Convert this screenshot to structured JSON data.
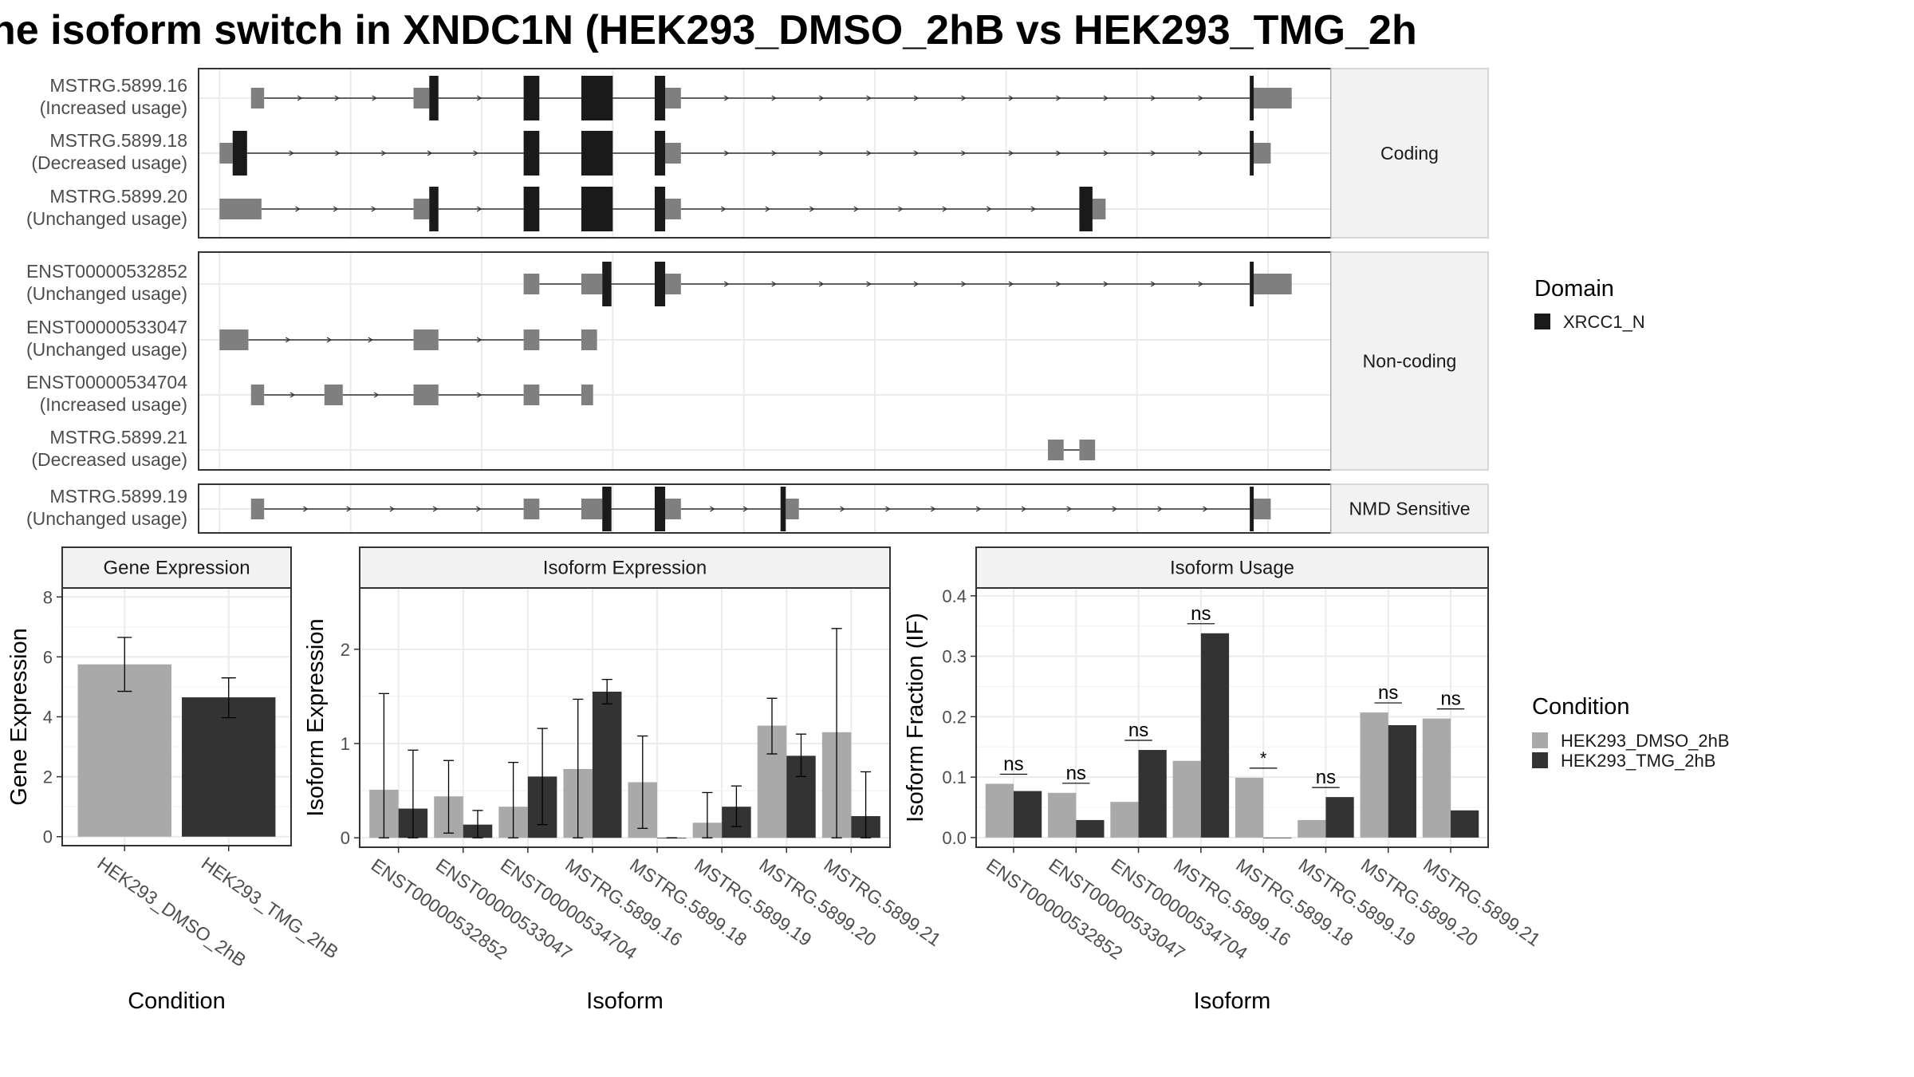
{
  "figure": {
    "title": "he isoform switch in XNDC1N (HEK293_DMSO_2hB vs HEK293_TMG_2h"
  },
  "colors": {
    "utr": "#7f7f7f",
    "domain": "#1a1a1a",
    "dmso": "#a9a9a9",
    "tmg": "#333333",
    "grid": "#ebebeb",
    "strip": "#f2f2f2",
    "border": "#333333"
  },
  "structure": {
    "facets": [
      {
        "name": "Coding",
        "transcripts": [
          {
            "id": "MSTRG.5899.16",
            "usage": "(Increased usage)",
            "utr": [
              [
                1.2,
                1.7
              ],
              [
                7.4,
                8.0
              ],
              [
                17.0,
                17.6
              ],
              [
                39.4,
                40.9
              ]
            ],
            "cds": [
              [
                8.0,
                8.35
              ],
              [
                11.6,
                12.2
              ],
              [
                13.8,
                15.0
              ],
              [
                16.6,
                17.0
              ],
              [
                39.3,
                39.45
              ]
            ],
            "introns": [
              [
                1.7,
                7.4
              ],
              [
                8.35,
                11.6
              ],
              [
                12.2,
                13.8
              ],
              [
                15.0,
                16.6
              ],
              [
                17.6,
                39.3
              ]
            ]
          },
          {
            "id": "MSTRG.5899.18",
            "usage": "(Decreased usage)",
            "utr": [
              [
                0.0,
                0.5
              ],
              [
                17.0,
                17.6
              ],
              [
                39.4,
                40.1
              ]
            ],
            "cds": [
              [
                0.5,
                1.05
              ],
              [
                11.6,
                12.2
              ],
              [
                13.8,
                15.0
              ],
              [
                16.6,
                17.0
              ],
              [
                39.3,
                39.45
              ]
            ],
            "introns": [
              [
                1.05,
                11.6
              ],
              [
                12.2,
                13.8
              ],
              [
                15.0,
                16.6
              ],
              [
                17.6,
                39.3
              ]
            ]
          },
          {
            "id": "MSTRG.5899.20",
            "usage": "(Unchanged usage)",
            "utr": [
              [
                0.0,
                1.6
              ],
              [
                7.4,
                8.0
              ],
              [
                17.0,
                17.6
              ],
              [
                32.8,
                33.8
              ]
            ],
            "cds": [
              [
                8.0,
                8.35
              ],
              [
                11.6,
                12.2
              ],
              [
                13.8,
                15.0
              ],
              [
                16.6,
                17.0
              ],
              [
                32.8,
                33.3
              ]
            ],
            "introns": [
              [
                1.6,
                7.4
              ],
              [
                8.35,
                11.6
              ],
              [
                12.2,
                13.8
              ],
              [
                15.0,
                16.6
              ],
              [
                17.6,
                32.8
              ]
            ]
          }
        ]
      },
      {
        "name": "Non-coding",
        "transcripts": [
          {
            "id": "ENST00000532852",
            "usage": "(Unchanged usage)",
            "utr": [
              [
                11.6,
                12.2
              ],
              [
                13.8,
                14.6
              ],
              [
                17.0,
                17.6
              ],
              [
                39.4,
                40.9
              ]
            ],
            "cds": [
              [
                14.6,
                14.95
              ],
              [
                16.6,
                17.0
              ],
              [
                39.3,
                39.45
              ]
            ],
            "introns": [
              [
                12.2,
                13.8
              ],
              [
                14.95,
                16.6
              ],
              [
                17.6,
                39.3
              ]
            ]
          },
          {
            "id": "ENST00000533047",
            "usage": "(Unchanged usage)",
            "utr": [
              [
                0.0,
                1.1
              ],
              [
                7.4,
                8.35
              ],
              [
                11.6,
                12.2
              ],
              [
                13.8,
                14.4
              ]
            ],
            "cds": [],
            "introns": [
              [
                1.1,
                7.4
              ],
              [
                8.35,
                11.6
              ],
              [
                12.2,
                13.8
              ]
            ]
          },
          {
            "id": "ENST00000534704",
            "usage": "(Increased usage)",
            "utr": [
              [
                1.2,
                1.7
              ],
              [
                4.0,
                4.7
              ],
              [
                7.4,
                8.35
              ],
              [
                11.6,
                12.2
              ],
              [
                13.8,
                14.25
              ]
            ],
            "cds": [],
            "introns": [
              [
                1.7,
                4.0
              ],
              [
                4.7,
                7.4
              ],
              [
                8.35,
                11.6
              ],
              [
                12.2,
                13.8
              ]
            ]
          },
          {
            "id": "MSTRG.5899.21",
            "usage": "(Decreased usage)",
            "utr": [
              [
                31.6,
                32.2
              ],
              [
                32.8,
                33.4
              ]
            ],
            "cds": [],
            "introns": [
              [
                32.2,
                32.8
              ]
            ]
          }
        ]
      },
      {
        "name": "NMD Sensitive",
        "transcripts": [
          {
            "id": "MSTRG.5899.19",
            "usage": "(Unchanged usage)",
            "utr": [
              [
                1.2,
                1.7
              ],
              [
                11.6,
                12.2
              ],
              [
                13.8,
                14.6
              ],
              [
                17.0,
                17.6
              ],
              [
                21.6,
                22.1
              ],
              [
                39.4,
                40.1
              ]
            ],
            "cds": [
              [
                14.6,
                14.95
              ],
              [
                16.6,
                17.0
              ],
              [
                21.4,
                21.6
              ],
              [
                39.3,
                39.45
              ]
            ],
            "introns": [
              [
                1.7,
                11.6
              ],
              [
                12.2,
                13.8
              ],
              [
                14.95,
                16.6
              ],
              [
                17.6,
                21.4
              ],
              [
                22.1,
                39.4
              ]
            ]
          }
        ]
      }
    ]
  },
  "legend_domain": {
    "title": "Domain",
    "items": [
      "XRCC1_N"
    ]
  },
  "legend_condition": {
    "title": "Condition",
    "items": [
      "HEK293_DMSO_2hB",
      "HEK293_TMG_2hB"
    ]
  },
  "chart_data": [
    {
      "type": "bar",
      "title": "Gene Expression",
      "xlabel": "Condition",
      "ylabel": "Gene Expression",
      "ylim": [
        -0.3,
        8.3
      ],
      "yticks": [
        0,
        2,
        4,
        6,
        8
      ],
      "categories": [
        "HEK293_DMSO_2hB",
        "HEK293_TMG_2hB"
      ],
      "values": [
        5.75,
        4.65
      ],
      "errors": [
        [
          4.85,
          6.65
        ],
        [
          3.97,
          5.3
        ]
      ]
    },
    {
      "type": "bar",
      "title": "Isoform Expression",
      "xlabel": "Isoform",
      "ylabel": "Isoform Expression",
      "ylim": [
        -0.1,
        2.65
      ],
      "yticks": [
        0,
        1,
        2
      ],
      "categories": [
        "ENST00000532852",
        "ENST00000533047",
        "ENST00000534704",
        "MSTRG.5899.16",
        "MSTRG.5899.18",
        "MSTRG.5899.19",
        "MSTRG.5899.20",
        "MSTRG.5899.21"
      ],
      "series": [
        {
          "name": "HEK293_DMSO_2hB",
          "values": [
            0.51,
            0.44,
            0.33,
            0.73,
            0.59,
            0.16,
            1.19,
            1.12
          ],
          "errors": [
            [
              0.0,
              1.53
            ],
            [
              0.05,
              0.82
            ],
            [
              0.0,
              0.8
            ],
            [
              0.0,
              1.47
            ],
            [
              0.1,
              1.08
            ],
            [
              0.0,
              0.48
            ],
            [
              0.89,
              1.48
            ],
            [
              0.0,
              2.22
            ]
          ]
        },
        {
          "name": "HEK293_TMG_2hB",
          "values": [
            0.31,
            0.14,
            0.65,
            1.55,
            0.0,
            0.33,
            0.87,
            0.23
          ],
          "errors": [
            [
              0.0,
              0.93
            ],
            [
              0.0,
              0.29
            ],
            [
              0.14,
              1.16
            ],
            [
              1.42,
              1.68
            ],
            [
              0.0,
              0.0
            ],
            [
              0.12,
              0.55
            ],
            [
              0.65,
              1.1
            ],
            [
              0.0,
              0.7
            ]
          ]
        }
      ]
    },
    {
      "type": "bar",
      "title": "Isoform Usage",
      "xlabel": "Isoform",
      "ylabel": "Isoform Fraction (IF)",
      "ylim": [
        -0.016,
        0.413
      ],
      "yticks": [
        0.0,
        0.1,
        0.2,
        0.3,
        0.4
      ],
      "ytick_labels": [
        "0.0",
        "0.1",
        "0.2",
        "0.3",
        "0.4"
      ],
      "categories": [
        "ENST00000532852",
        "ENST00000533047",
        "ENST00000534704",
        "MSTRG.5899.16",
        "MSTRG.5899.18",
        "MSTRG.5899.19",
        "MSTRG.5899.20",
        "MSTRG.5899.21"
      ],
      "series": [
        {
          "name": "HEK293_DMSO_2hB",
          "values": [
            0.089,
            0.074,
            0.059,
            0.127,
            0.099,
            0.029,
            0.207,
            0.197
          ]
        },
        {
          "name": "HEK293_TMG_2hB",
          "values": [
            0.077,
            0.029,
            0.145,
            0.338,
            0.0,
            0.067,
            0.186,
            0.045
          ]
        }
      ],
      "significance": [
        "ns",
        "ns",
        "ns",
        "ns",
        "*",
        "ns",
        "ns",
        "ns"
      ]
    }
  ]
}
